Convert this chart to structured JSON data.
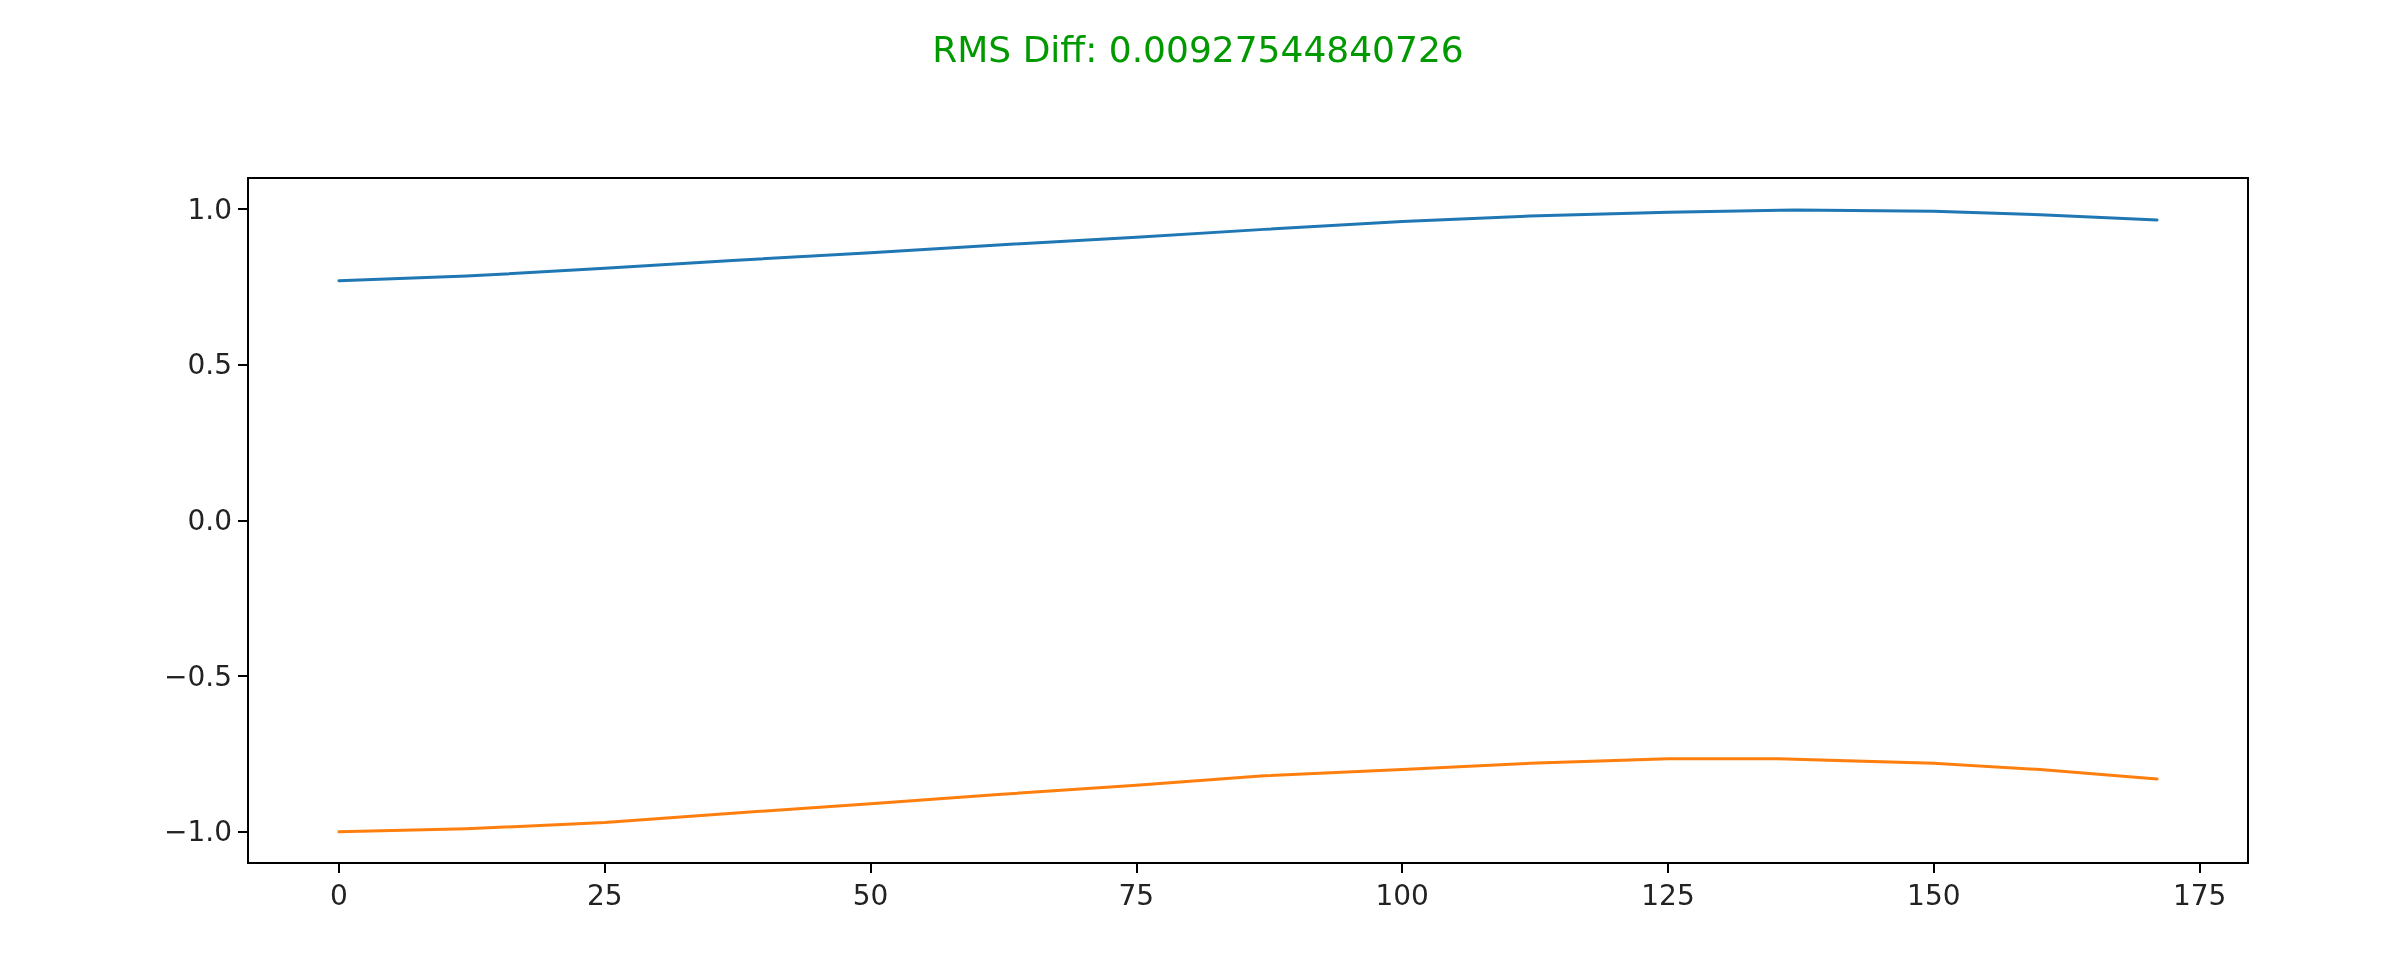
{
  "chart_data": {
    "type": "line",
    "title": "RMS Diff: 0.00927544840726",
    "xlim": [
      -8.55,
      179.55
    ],
    "xticks": [
      0,
      25,
      50,
      75,
      100,
      125,
      150,
      175
    ],
    "ylim": [
      -1.1,
      1.1
    ],
    "yticks": [
      {
        "value": -1,
        "label": "−1.0"
      },
      {
        "value": -0.5,
        "label": "−0.5"
      },
      {
        "value": 0,
        "label": "0.0"
      },
      {
        "value": 0.5,
        "label": "0.5"
      },
      {
        "value": 1,
        "label": "1.0"
      }
    ],
    "grid": false,
    "marker": "none",
    "line_style": "solid",
    "series": [
      {
        "color": "#1f77b4",
        "x": [
          0,
          12,
          25,
          37,
          50,
          62,
          75,
          87,
          100,
          112,
          125,
          137,
          150,
          160,
          171
        ],
        "values": [
          0.77,
          0.785,
          0.81,
          0.835,
          0.86,
          0.885,
          0.91,
          0.935,
          0.96,
          0.978,
          0.99,
          0.997,
          0.993,
          0.982,
          0.965
        ]
      },
      {
        "color": "#ff7f0e",
        "x": [
          0,
          12,
          25,
          37,
          50,
          62,
          75,
          87,
          100,
          112,
          125,
          135,
          150,
          160,
          171
        ],
        "values": [
          -1.0,
          -0.99,
          -0.97,
          -0.94,
          -0.91,
          -0.88,
          -0.85,
          -0.82,
          -0.8,
          -0.78,
          -0.765,
          -0.765,
          -0.78,
          -0.8,
          -0.83
        ]
      }
    ]
  }
}
